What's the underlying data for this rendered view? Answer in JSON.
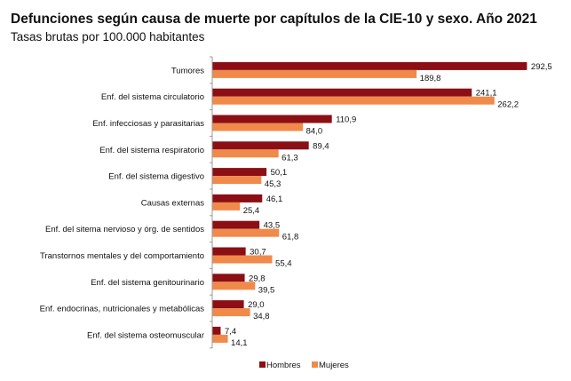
{
  "chart_data": {
    "type": "bar",
    "orientation": "horizontal",
    "title": "Defunciones según causa de muerte por capítulos de la CIE-10 y sexo. Año 2021",
    "subtitle": "Tasas brutas por 100.000 habitantes",
    "categories": [
      "Tumores",
      "Enf. del sistema circulatorio",
      "Enf. infecciosas y parasitarias",
      "Enf. del sistema respiratorio",
      "Enf. del sistema digestivo",
      "Causas externas",
      "Enf. del sitema nervioso y órg. de sentidos",
      "Transtornos mentales y del comportamiento",
      "Enf. del sistema genitourinario",
      "Enf. endocrinas, nutricionales y metabólicas",
      "Enf. del sistema osteomuscular"
    ],
    "series": [
      {
        "name": "Hombres",
        "color": "#8B0F14",
        "values": [
          292.5,
          241.1,
          110.9,
          89.4,
          50.1,
          46.1,
          43.5,
          30.7,
          29.8,
          29.0,
          7.4
        ],
        "labels": [
          "292,5",
          "241,1",
          "110,9",
          "89,4",
          "50,1",
          "46,1",
          "43,5",
          "30,7",
          "29,8",
          "29,0",
          "7,4"
        ]
      },
      {
        "name": "Mujeres",
        "color": "#F08A4B",
        "values": [
          189.8,
          262.2,
          84.0,
          61.3,
          45.3,
          25.4,
          61.8,
          55.4,
          39.5,
          34.8,
          14.1
        ],
        "labels": [
          "189,8",
          "262,2",
          "84,0",
          "61,3",
          "45,3",
          "25,4",
          "61,8",
          "55,4",
          "39,5",
          "34,8",
          "14,1"
        ]
      }
    ],
    "xlim": [
      0,
      300
    ],
    "grid": false,
    "legend": "bottom"
  }
}
